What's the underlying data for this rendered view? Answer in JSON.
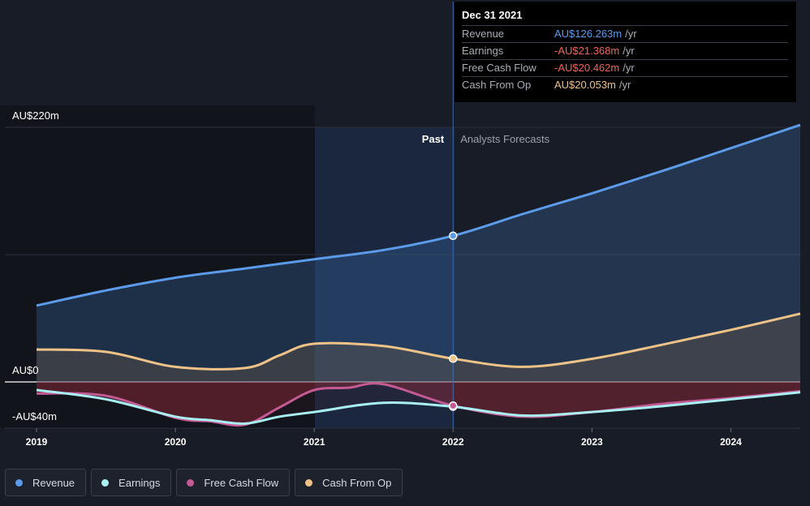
{
  "chart_data": {
    "type": "area",
    "y_axis": {
      "min": -40,
      "max": 220,
      "labels": [
        "AU$220m",
        "AU$0",
        "-AU$40m"
      ],
      "label_values": [
        220,
        0,
        -40
      ],
      "unit": "AU$m"
    },
    "x_axis": {
      "ticks": [
        "2019",
        "2020",
        "2021",
        "2022",
        "2023",
        "2024"
      ],
      "tick_values": [
        2019,
        2020,
        2021,
        2022,
        2023,
        2024
      ],
      "range": [
        2019,
        2024.5
      ]
    },
    "zones": {
      "past": "Past",
      "forecast": "Analysts Forecasts",
      "divider_x": 2022
    },
    "series": [
      {
        "name": "Revenue",
        "color": "#5b9bea",
        "points": [
          [
            2019,
            66
          ],
          [
            2019.5,
            79
          ],
          [
            2020,
            90
          ],
          [
            2020.5,
            98
          ],
          [
            2021,
            106
          ],
          [
            2021.5,
            114
          ],
          [
            2022,
            126.3
          ],
          [
            2022.5,
            145
          ],
          [
            2023,
            163
          ],
          [
            2023.5,
            182
          ],
          [
            2024,
            202
          ],
          [
            2024.5,
            222
          ]
        ]
      },
      {
        "name": "Earnings",
        "color": "#a9f0f2",
        "points": [
          [
            2019,
            -7
          ],
          [
            2019.5,
            -15
          ],
          [
            2020,
            -30
          ],
          [
            2020.25,
            -33
          ],
          [
            2020.5,
            -36
          ],
          [
            2020.75,
            -30
          ],
          [
            2021,
            -26
          ],
          [
            2021.5,
            -18
          ],
          [
            2022,
            -21.4
          ],
          [
            2022.5,
            -29
          ],
          [
            2023,
            -26
          ],
          [
            2023.5,
            -21
          ],
          [
            2024,
            -15
          ],
          [
            2024.5,
            -9
          ]
        ]
      },
      {
        "name": "Free Cash Flow",
        "color": "#c45a94",
        "points": [
          [
            2019,
            -10
          ],
          [
            2019.5,
            -12
          ],
          [
            2020,
            -31
          ],
          [
            2020.25,
            -34
          ],
          [
            2020.5,
            -37
          ],
          [
            2020.75,
            -22
          ],
          [
            2021,
            -7
          ],
          [
            2021.25,
            -5
          ],
          [
            2021.5,
            -2
          ],
          [
            2022,
            -20.5
          ],
          [
            2022.5,
            -30
          ],
          [
            2023,
            -26
          ],
          [
            2023.5,
            -19
          ],
          [
            2024,
            -14
          ],
          [
            2024.5,
            -8
          ]
        ]
      },
      {
        "name": "Cash From Op",
        "color": "#efc387",
        "points": [
          [
            2019,
            28
          ],
          [
            2019.5,
            26
          ],
          [
            2020,
            13
          ],
          [
            2020.5,
            12
          ],
          [
            2020.75,
            23
          ],
          [
            2021,
            33
          ],
          [
            2021.5,
            31
          ],
          [
            2022,
            20.1
          ],
          [
            2022.5,
            13
          ],
          [
            2023,
            20
          ],
          [
            2023.5,
            32
          ],
          [
            2024,
            45
          ],
          [
            2024.5,
            59
          ]
        ]
      }
    ],
    "highlight_x": 2022
  },
  "tooltip": {
    "date": "Dec 31 2021",
    "rows": [
      {
        "name": "Revenue",
        "value": "AU$126.263m",
        "unit": "/yr",
        "color": "#5b9bea"
      },
      {
        "name": "Earnings",
        "value": "-AU$21.368m",
        "unit": "/yr",
        "color": "#f0635a"
      },
      {
        "name": "Free Cash Flow",
        "value": "-AU$20.462m",
        "unit": "/yr",
        "color": "#f0635a"
      },
      {
        "name": "Cash From Op",
        "value": "AU$20.053m",
        "unit": "/yr",
        "color": "#efc387"
      }
    ]
  },
  "legend": [
    {
      "label": "Revenue",
      "color": "#5b9bea"
    },
    {
      "label": "Earnings",
      "color": "#a9f0f2"
    },
    {
      "label": "Free Cash Flow",
      "color": "#c45a94"
    },
    {
      "label": "Cash From Op",
      "color": "#efc387"
    }
  ]
}
